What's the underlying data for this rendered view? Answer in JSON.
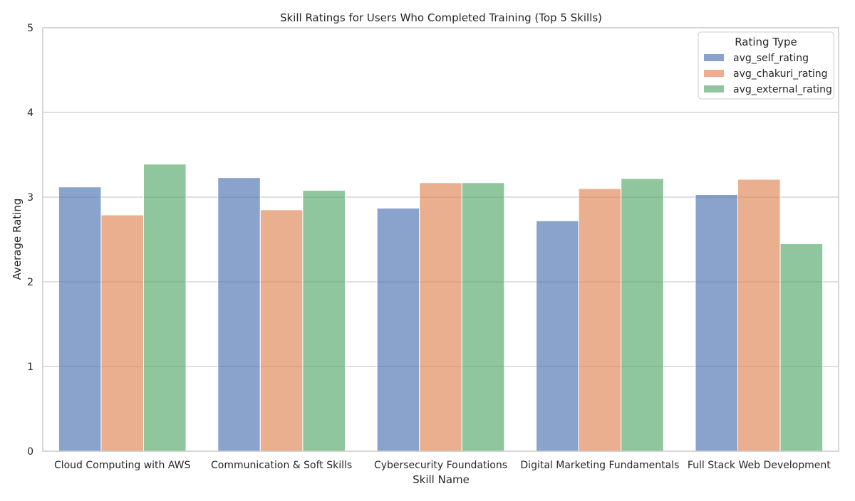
{
  "chart_data": {
    "type": "bar",
    "title": "Skill Ratings for Users Who Completed Training (Top 5 Skills)",
    "xlabel": "Skill Name",
    "ylabel": "Average Rating",
    "ylim": [
      0,
      5
    ],
    "yticks": [
      "0",
      "1",
      "2",
      "3",
      "4",
      "5"
    ],
    "grid": "horizontal",
    "categories": [
      "Cloud Computing with AWS",
      "Communication & Soft Skills",
      "Cybersecurity Foundations",
      "Digital Marketing Fundamentals",
      "Full Stack Web Development"
    ],
    "legend": {
      "title": "Rating Type",
      "placement": "top-right"
    },
    "series": [
      {
        "name": "avg_self_rating",
        "color": "#4c72b0",
        "values": [
          3.12,
          3.23,
          2.87,
          2.72,
          3.03
        ]
      },
      {
        "name": "avg_chakuri_rating",
        "color": "#dd8452",
        "values": [
          2.79,
          2.85,
          3.17,
          3.1,
          3.21
        ]
      },
      {
        "name": "avg_external_rating",
        "color": "#55a868",
        "values": [
          3.39,
          3.08,
          3.17,
          3.22,
          2.45
        ]
      }
    ]
  }
}
